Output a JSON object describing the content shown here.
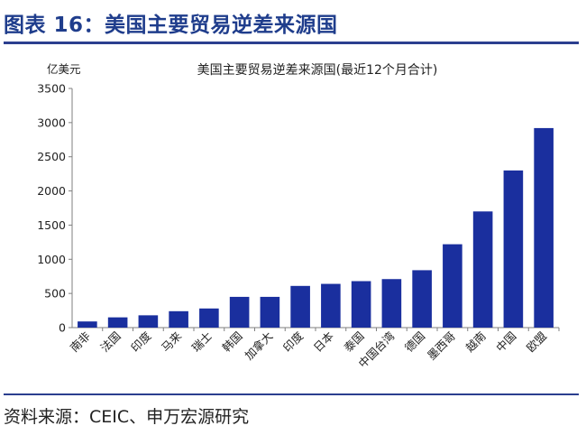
{
  "figure_title": "图表 16：美国主要贸易逆差来源国",
  "source": "资料来源：CEIC、申万宏源研究",
  "colors": {
    "bar": "#1a2f9e",
    "accent": "#2b3f8f",
    "axis": "#7f7f7f"
  },
  "chart_data": {
    "type": "bar",
    "title": "美国主要贸易逆差来源国(最近12个月合计)",
    "unit_label": "亿美元",
    "xlabel": "",
    "ylabel": "",
    "ylim": [
      0,
      3500
    ],
    "yticks": [
      0,
      500,
      1000,
      1500,
      2000,
      2500,
      3000,
      3500
    ],
    "grid": false,
    "legend": "none",
    "categories": [
      "南非",
      "法国",
      "印度",
      "马来",
      "瑞士",
      "韩国",
      "加拿大",
      "印度",
      "日本",
      "泰国",
      "中国台湾",
      "德国",
      "墨西哥",
      "越南",
      "中国",
      "欧盟"
    ],
    "values": [
      90,
      150,
      180,
      240,
      280,
      450,
      450,
      610,
      640,
      680,
      710,
      840,
      1220,
      1700,
      2300,
      2920
    ]
  }
}
